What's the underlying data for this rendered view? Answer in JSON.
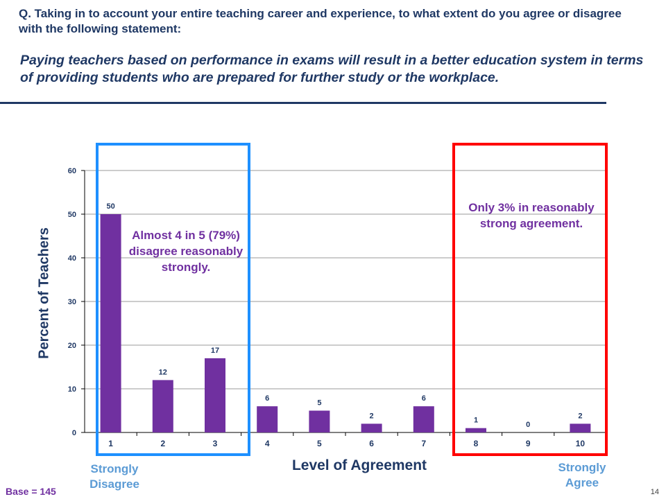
{
  "question": "Q. Taking in to account your entire teaching career and experience, to what extent do you agree or disagree with the following statement:",
  "statement": "Paying teachers based on performance in exams will result in a better education system in terms of providing students who are prepared for further study or the workplace.",
  "labels": {
    "strongly_disagree": "Strongly Disagree",
    "strongly_agree": "Strongly Agree"
  },
  "callouts": {
    "disagree": "Almost 4 in 5 (79%) disagree reasonably strongly.",
    "agree": "Only 3% in reasonably strong agreement."
  },
  "base": "Base = 145",
  "page_number": "14",
  "colors": {
    "bar": "#7030a0",
    "title": "#1f3864",
    "disagree_box": "#1e90ff",
    "agree_box": "#ff0000",
    "end_labels": "#5b9bd5"
  },
  "chart_data": {
    "type": "bar",
    "categories": [
      "1",
      "2",
      "3",
      "4",
      "5",
      "6",
      "7",
      "8",
      "9",
      "10"
    ],
    "values": [
      50,
      12,
      17,
      6,
      5,
      2,
      6,
      1,
      0,
      2
    ],
    "xlabel": "Level of Agreement",
    "ylabel": "Percent of Teachers",
    "ylim": [
      0,
      60
    ],
    "yticks": [
      0,
      10,
      20,
      30,
      40,
      50,
      60
    ],
    "grid": true,
    "legend": false
  }
}
